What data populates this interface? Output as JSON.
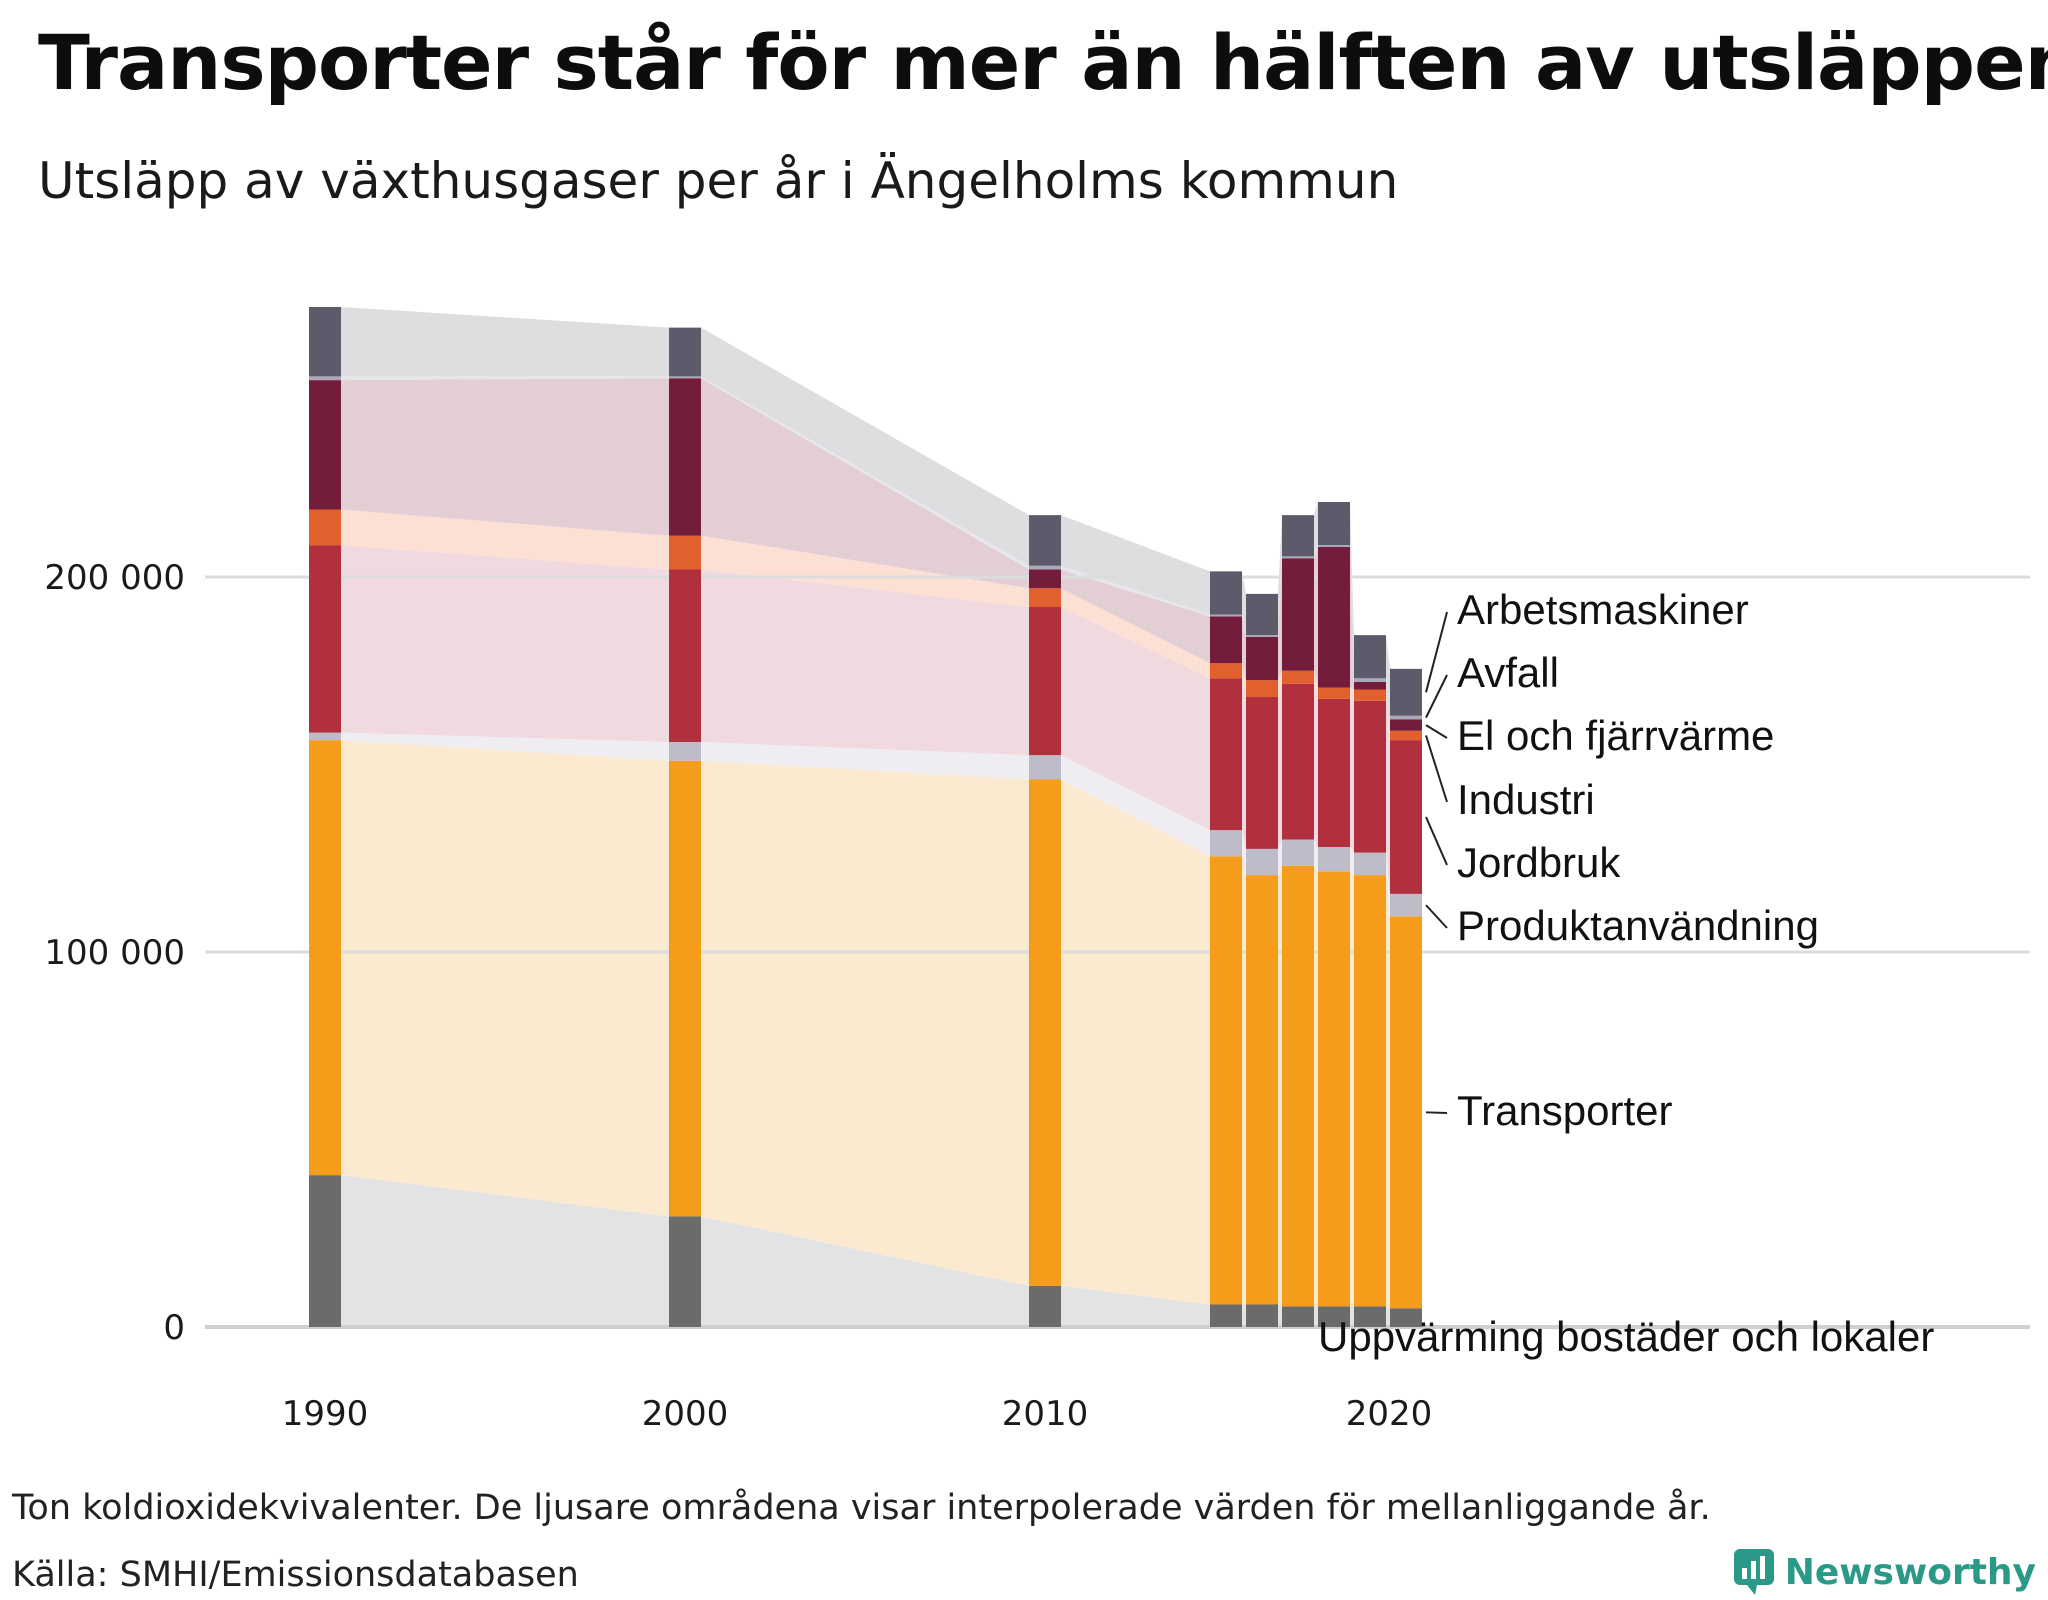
{
  "title": "Transporter står för mer än hälften av utsläppen",
  "subtitle": "Utsläpp av växthusgaser per år i Ängelholms kommun",
  "note": "Ton koldioxidekvivalenter. De ljusare områdena visar interpolerade värden för mellanliggande år.",
  "source": "Källa: SMHI/Emissionsdatabasen",
  "brand": "Newsworthy",
  "chart_data": {
    "type": "stacked-bar",
    "title": "Utsläpp av växthusgaser per år i Ängelholms kommun",
    "xlabel": "",
    "ylabel": "Ton koldioxidekvivalenter",
    "ylim": [
      0,
      270000
    ],
    "yticks": [
      0,
      100000,
      200000
    ],
    "ytick_labels": [
      "0",
      "100 000",
      "200 000"
    ],
    "xticks": [
      1990,
      2000,
      2010,
      2020
    ],
    "xtick_labels": [
      "1990",
      "2000",
      "2010",
      "2020"
    ],
    "grid": true,
    "years": [
      1990,
      2000,
      2010,
      2015,
      2016,
      2017,
      2018,
      2019,
      2020
    ],
    "series": [
      {
        "name": "Uppvärming bostäder och lokaler",
        "color": "#6b6b6b",
        "fill": "#e3e3e3",
        "values": [
          40500,
          29500,
          11000,
          6000,
          6000,
          5500,
          5500,
          5500,
          5000
        ]
      },
      {
        "name": "Transporter",
        "color": "#f59d1b",
        "fill": "#fcead0",
        "values": [
          116000,
          121500,
          135000,
          119500,
          114500,
          117500,
          116000,
          115000,
          104500
        ]
      },
      {
        "name": "Produktanvändning",
        "color": "#bfbcc9",
        "fill": "#efedf1",
        "values": [
          2000,
          5000,
          6500,
          7000,
          7000,
          7000,
          6500,
          6000,
          6000
        ]
      },
      {
        "name": "Jordbruk",
        "color": "#b0303e",
        "fill": "#f0dadf",
        "values": [
          50000,
          46000,
          39500,
          40500,
          40500,
          41500,
          39500,
          40500,
          41000
        ]
      },
      {
        "name": "Industri",
        "color": "#e2602e",
        "fill": "#fde0d4",
        "values": [
          9500,
          9000,
          5000,
          4000,
          4500,
          3500,
          3000,
          3000,
          2500
        ]
      },
      {
        "name": "El och fjärrvärme",
        "color": "#731c3b",
        "fill": "#e3ced6",
        "values": [
          34500,
          42000,
          5000,
          12500,
          11500,
          30000,
          37500,
          2000,
          3000
        ]
      },
      {
        "name": "Avfall",
        "color": "#a9a9b8",
        "fill": "#e7e6ea",
        "values": [
          1000,
          500,
          1000,
          500,
          500,
          500,
          500,
          1000,
          1000
        ]
      },
      {
        "name": "Arbetsmaskiner",
        "color": "#5b5b6b",
        "fill": "#dedee1",
        "values": [
          18500,
          13000,
          13500,
          11500,
          11000,
          11000,
          11500,
          11500,
          12500
        ]
      }
    ],
    "legend_order": [
      "Arbetsmaskiner",
      "Avfall",
      "El och fjärrvärme",
      "Industri",
      "Jordbruk",
      "Produktanvändning",
      "Transporter",
      "Uppvärming bostäder och lokaler"
    ]
  }
}
